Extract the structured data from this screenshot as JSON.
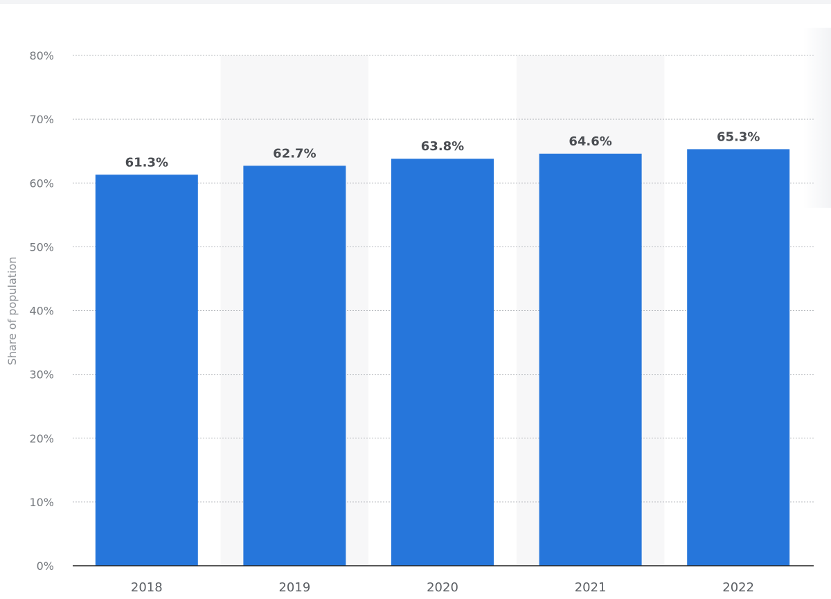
{
  "chart_data": {
    "type": "bar",
    "categories": [
      "2018",
      "2019",
      "2020",
      "2021",
      "2022"
    ],
    "values": [
      61.3,
      62.7,
      63.8,
      64.6,
      65.3
    ],
    "value_labels": [
      "61.3%",
      "62.7%",
      "63.8%",
      "64.6%",
      "65.3%"
    ],
    "title": "",
    "xlabel": "",
    "ylabel": "Share of population",
    "ylim": [
      0,
      80
    ],
    "y_ticks": [
      "0%",
      "10%",
      "20%",
      "30%",
      "40%",
      "50%",
      "60%",
      "70%",
      "80%"
    ],
    "grid": true,
    "legend": "none",
    "colors": {
      "bar": "#2676db",
      "alt_column_band": "#f7f7f8",
      "grid": "#b9bcc0",
      "baseline": "#1f1f1f"
    }
  }
}
